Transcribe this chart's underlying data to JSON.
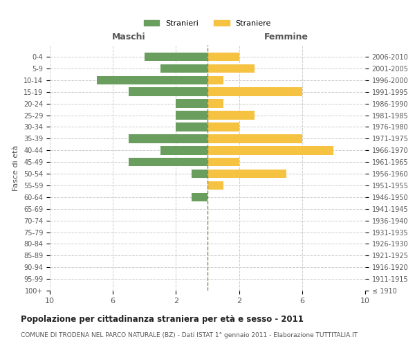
{
  "age_groups": [
    "100+",
    "95-99",
    "90-94",
    "85-89",
    "80-84",
    "75-79",
    "70-74",
    "65-69",
    "60-64",
    "55-59",
    "50-54",
    "45-49",
    "40-44",
    "35-39",
    "30-34",
    "25-29",
    "20-24",
    "15-19",
    "10-14",
    "5-9",
    "0-4"
  ],
  "birth_years": [
    "≤ 1910",
    "1911-1915",
    "1916-1920",
    "1921-1925",
    "1926-1930",
    "1931-1935",
    "1936-1940",
    "1941-1945",
    "1946-1950",
    "1951-1955",
    "1956-1960",
    "1961-1965",
    "1966-1970",
    "1971-1975",
    "1976-1980",
    "1981-1985",
    "1986-1990",
    "1991-1995",
    "1996-2000",
    "2001-2005",
    "2006-2010"
  ],
  "maschi": [
    0,
    0,
    0,
    0,
    0,
    0,
    0,
    0,
    1,
    0,
    1,
    5,
    3,
    5,
    2,
    2,
    2,
    5,
    7,
    3,
    4
  ],
  "femmine": [
    0,
    0,
    0,
    0,
    0,
    0,
    0,
    0,
    0,
    1,
    5,
    2,
    8,
    6,
    2,
    3,
    1,
    6,
    1,
    3,
    2
  ],
  "color_maschi": "#6a9e5e",
  "color_femmine": "#f5c242",
  "xlim": 10,
  "dashed_line_color": "#888855",
  "title": "Popolazione per cittadinanza straniera per età e sesso - 2011",
  "subtitle": "COMUNE DI TRODENA NEL PARCO NATURALE (BZ) - Dati ISTAT 1° gennaio 2011 - Elaborazione TUTTITALIA.IT",
  "label_maschi": "Stranieri",
  "label_femmine": "Straniere",
  "ylabel_left": "Fasce di età",
  "header_maschi": "Maschi",
  "header_femmine": "Femmine",
  "background_color": "#ffffff",
  "grid_color": "#cccccc",
  "xtick_positions": [
    -10,
    -6,
    -2,
    2,
    6,
    10
  ],
  "xtick_labels": [
    "10",
    "6",
    "2",
    "2",
    "6",
    "10"
  ]
}
